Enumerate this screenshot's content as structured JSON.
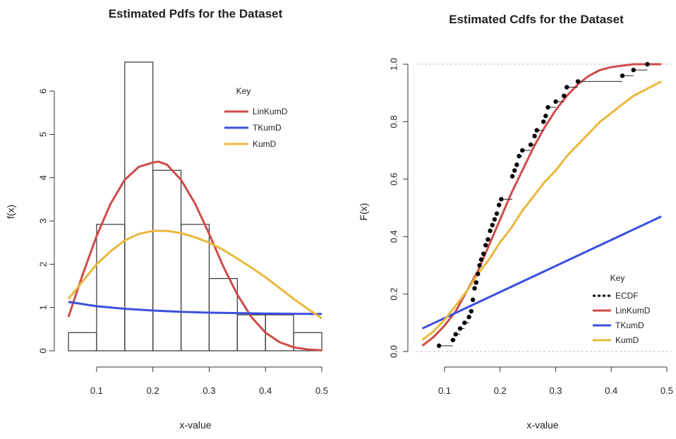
{
  "chart_data": [
    {
      "type": "histogram-with-density",
      "title": "Estimated Pdfs for the Dataset",
      "xlabel": "x-value",
      "ylabel": "f(x)",
      "xlim": [
        0.05,
        0.5
      ],
      "ylim": [
        0,
        6.7
      ],
      "xticks": [
        "0.1",
        "0.2",
        "0.3",
        "0.4",
        "0.5"
      ],
      "yticks": [
        "0",
        "1",
        "2",
        "3",
        "4",
        "5",
        "6"
      ],
      "histogram": {
        "bins": [
          [
            0.05,
            0.1
          ],
          [
            0.1,
            0.15
          ],
          [
            0.15,
            0.2
          ],
          [
            0.2,
            0.25
          ],
          [
            0.25,
            0.3
          ],
          [
            0.3,
            0.35
          ],
          [
            0.35,
            0.4
          ],
          [
            0.4,
            0.45
          ],
          [
            0.45,
            0.5
          ]
        ],
        "values": [
          0.42,
          2.92,
          6.67,
          4.17,
          2.92,
          1.67,
          0.83,
          0.83,
          0.42
        ]
      },
      "legend": {
        "title": "Key",
        "position": "top-right",
        "entries": [
          "LinKumD",
          "TKumD",
          "KumD"
        ]
      },
      "series": [
        {
          "name": "LinKumD",
          "color": "#d04a4a",
          "x": [
            0.05,
            0.075,
            0.1,
            0.125,
            0.15,
            0.175,
            0.2,
            0.21,
            0.225,
            0.25,
            0.275,
            0.3,
            0.325,
            0.35,
            0.375,
            0.4,
            0.425,
            0.45,
            0.475,
            0.5
          ],
          "y": [
            0.78,
            1.75,
            2.65,
            3.4,
            3.95,
            4.25,
            4.35,
            4.37,
            4.3,
            3.95,
            3.4,
            2.7,
            1.95,
            1.3,
            0.78,
            0.42,
            0.2,
            0.08,
            0.03,
            0.01
          ]
        },
        {
          "name": "TKumD",
          "color": "#3a4fe0",
          "x": [
            0.05,
            0.1,
            0.15,
            0.2,
            0.25,
            0.3,
            0.35,
            0.4,
            0.45,
            0.5
          ],
          "y": [
            1.13,
            1.03,
            0.97,
            0.93,
            0.9,
            0.88,
            0.87,
            0.86,
            0.855,
            0.85
          ]
        },
        {
          "name": "KumD",
          "color": "#e8b83a",
          "x": [
            0.05,
            0.075,
            0.1,
            0.125,
            0.15,
            0.175,
            0.2,
            0.225,
            0.25,
            0.275,
            0.3,
            0.325,
            0.35,
            0.375,
            0.4,
            0.425,
            0.45,
            0.475,
            0.5
          ],
          "y": [
            1.2,
            1.6,
            2.0,
            2.3,
            2.55,
            2.7,
            2.77,
            2.77,
            2.72,
            2.62,
            2.5,
            2.33,
            2.13,
            1.92,
            1.7,
            1.45,
            1.2,
            0.97,
            0.75
          ]
        }
      ]
    },
    {
      "type": "line",
      "title": "Estimated Cdfs for the Dataset",
      "xlabel": "x-value",
      "ylabel": "F(x)",
      "xlim": [
        0.05,
        0.5
      ],
      "ylim": [
        -0.03,
        1.05
      ],
      "xticks": [
        "0.1",
        "0.2",
        "0.3",
        "0.4",
        "0.5"
      ],
      "yticks": [
        "0.0",
        "0.2",
        "0.4",
        "0.6",
        "0.8",
        "1.0"
      ],
      "reference_lines": [
        0,
        1
      ],
      "legend": {
        "title": "Key",
        "position": "bottom-right",
        "entries": [
          "ECDF",
          "LinKumD",
          "TKumD",
          "KumD"
        ]
      },
      "ecdf": {
        "name": "ECDF",
        "color": "#000000",
        "x": [
          0.09,
          0.115,
          0.12,
          0.128,
          0.136,
          0.144,
          0.148,
          0.151,
          0.154,
          0.157,
          0.16,
          0.163,
          0.166,
          0.17,
          0.174,
          0.178,
          0.182,
          0.186,
          0.19,
          0.194,
          0.198,
          0.202,
          0.222,
          0.226,
          0.23,
          0.234,
          0.24,
          0.255,
          0.262,
          0.266,
          0.278,
          0.282,
          0.286,
          0.3,
          0.315,
          0.32,
          0.34,
          0.42,
          0.44,
          0.465
        ],
        "y": [
          0.02,
          0.04,
          0.06,
          0.08,
          0.1,
          0.12,
          0.14,
          0.18,
          0.22,
          0.24,
          0.27,
          0.3,
          0.32,
          0.34,
          0.37,
          0.39,
          0.42,
          0.44,
          0.46,
          0.48,
          0.51,
          0.53,
          0.61,
          0.63,
          0.65,
          0.68,
          0.7,
          0.72,
          0.75,
          0.77,
          0.8,
          0.82,
          0.85,
          0.87,
          0.89,
          0.92,
          0.94,
          0.96,
          0.98,
          1.0
        ]
      },
      "series": [
        {
          "name": "LinKumD",
          "color": "#d04a4a",
          "x": [
            0.06,
            0.08,
            0.1,
            0.12,
            0.14,
            0.16,
            0.18,
            0.2,
            0.22,
            0.24,
            0.26,
            0.28,
            0.3,
            0.32,
            0.34,
            0.36,
            0.38,
            0.4,
            0.42,
            0.44,
            0.46,
            0.49
          ],
          "y": [
            0.02,
            0.05,
            0.09,
            0.14,
            0.21,
            0.28,
            0.37,
            0.46,
            0.55,
            0.63,
            0.71,
            0.78,
            0.84,
            0.89,
            0.93,
            0.96,
            0.98,
            0.99,
            0.995,
            1.0,
            1.0,
            1.0
          ]
        },
        {
          "name": "TKumD",
          "color": "#3a4fe0",
          "x": [
            0.06,
            0.49
          ],
          "y": [
            0.08,
            0.47
          ]
        },
        {
          "name": "KumD",
          "color": "#e8b83a",
          "x": [
            0.06,
            0.08,
            0.1,
            0.12,
            0.14,
            0.16,
            0.18,
            0.2,
            0.22,
            0.24,
            0.26,
            0.28,
            0.3,
            0.32,
            0.34,
            0.36,
            0.38,
            0.4,
            0.42,
            0.44,
            0.46,
            0.49
          ],
          "y": [
            0.04,
            0.07,
            0.11,
            0.16,
            0.21,
            0.27,
            0.32,
            0.38,
            0.43,
            0.49,
            0.54,
            0.59,
            0.63,
            0.68,
            0.72,
            0.76,
            0.8,
            0.83,
            0.86,
            0.89,
            0.91,
            0.94
          ]
        }
      ]
    }
  ]
}
